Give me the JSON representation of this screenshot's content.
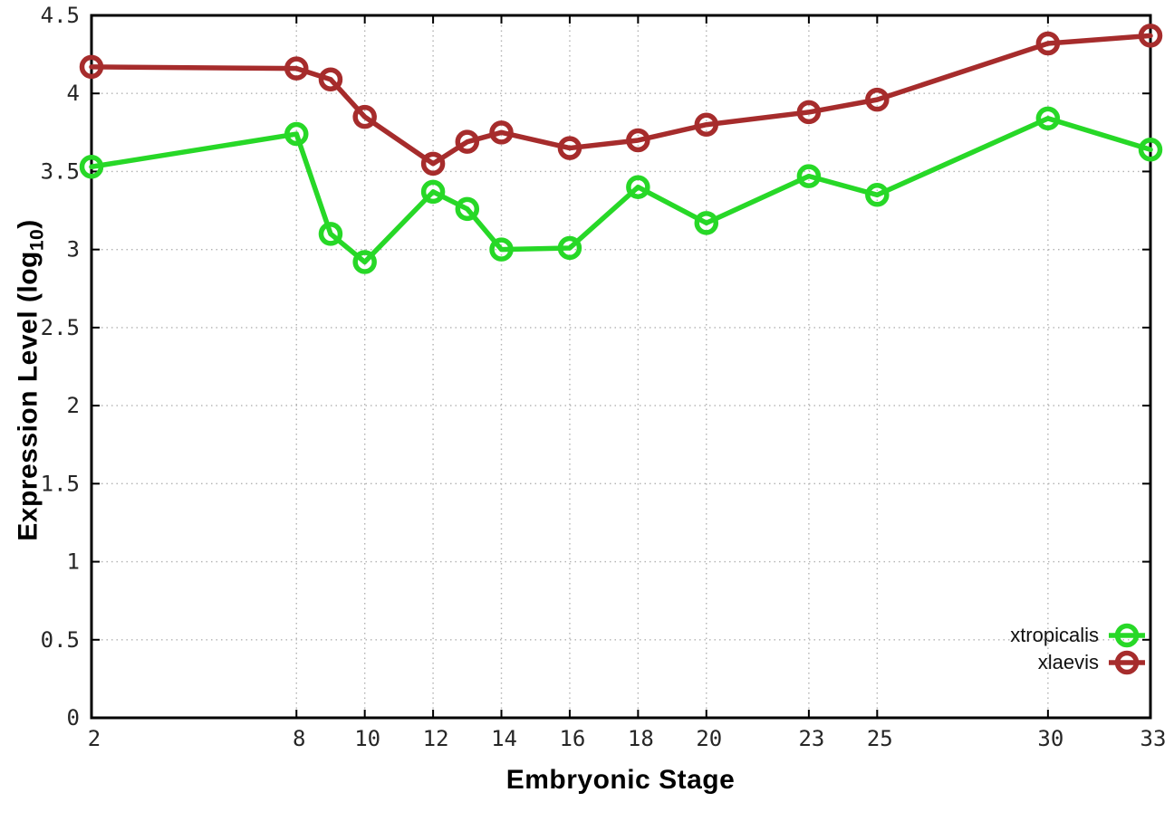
{
  "chart_data": {
    "type": "line",
    "title": "",
    "xlabel": "Embryonic Stage",
    "ylabel": "Expression Level (log10)",
    "ylabel_parts": {
      "base": "Expression Level (log",
      "sub": "10",
      "close": ")"
    },
    "x": [
      2,
      8,
      9,
      10,
      12,
      13,
      14,
      16,
      18,
      20,
      23,
      25,
      30,
      33
    ],
    "series": [
      {
        "name": "xtropicalis",
        "color": "#27d827",
        "marker": "open-circle",
        "values": [
          3.53,
          3.74,
          3.1,
          2.92,
          3.37,
          3.26,
          3.0,
          3.01,
          3.4,
          3.17,
          3.47,
          3.35,
          3.84,
          3.64
        ]
      },
      {
        "name": "xlaevis",
        "color": "#a62c2c",
        "marker": "open-circle",
        "values": [
          4.17,
          4.16,
          4.09,
          3.85,
          3.55,
          3.69,
          3.75,
          3.65,
          3.7,
          3.8,
          3.88,
          3.96,
          4.32,
          4.37
        ]
      }
    ],
    "xlim": [
      2,
      33
    ],
    "ylim": [
      0,
      4.5
    ],
    "x_ticks": [
      2,
      8,
      10,
      12,
      14,
      16,
      18,
      20,
      23,
      25,
      30,
      33
    ],
    "x_tick_labels": [
      "2",
      "8",
      "10",
      "12",
      "14",
      "16",
      "18",
      "20",
      "23",
      "25",
      "30",
      "33"
    ],
    "y_ticks": [
      0,
      0.5,
      1,
      1.5,
      2,
      2.5,
      3,
      3.5,
      4,
      4.5
    ],
    "y_tick_labels": [
      "0",
      "0.5",
      "1",
      "1.5",
      "2",
      "2.5",
      "3",
      "3.5",
      "4",
      "4.5"
    ],
    "grid": true,
    "legend_position": "inside-bottom-right"
  },
  "colors": {
    "background": "#ffffff",
    "border": "#000000",
    "grid": "#b2b2b2",
    "tick_text": "#262626",
    "axis_title_text": "#000000",
    "xtropicalis": "#27d827",
    "xlaevis": "#a62c2c"
  }
}
